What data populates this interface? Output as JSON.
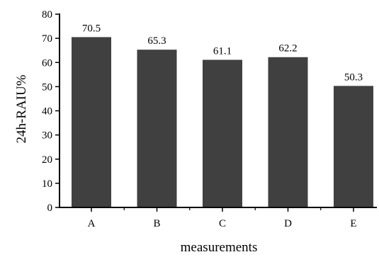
{
  "chart_data": {
    "type": "bar",
    "categories": [
      "A",
      "B",
      "C",
      "D",
      "E"
    ],
    "values": [
      70.5,
      65.3,
      61.1,
      62.2,
      50.3
    ],
    "data_labels": [
      "70.5",
      "65.3",
      "61.1",
      "62.2",
      "50.3"
    ],
    "title": "",
    "xlabel": "measurements",
    "ylabel": "24h-RAIU%",
    "ylim": [
      0,
      80
    ],
    "yticks": [
      0,
      10,
      20,
      30,
      40,
      50,
      60,
      70,
      80
    ],
    "grid": false,
    "legend": "none",
    "bar_color": "#404040"
  }
}
